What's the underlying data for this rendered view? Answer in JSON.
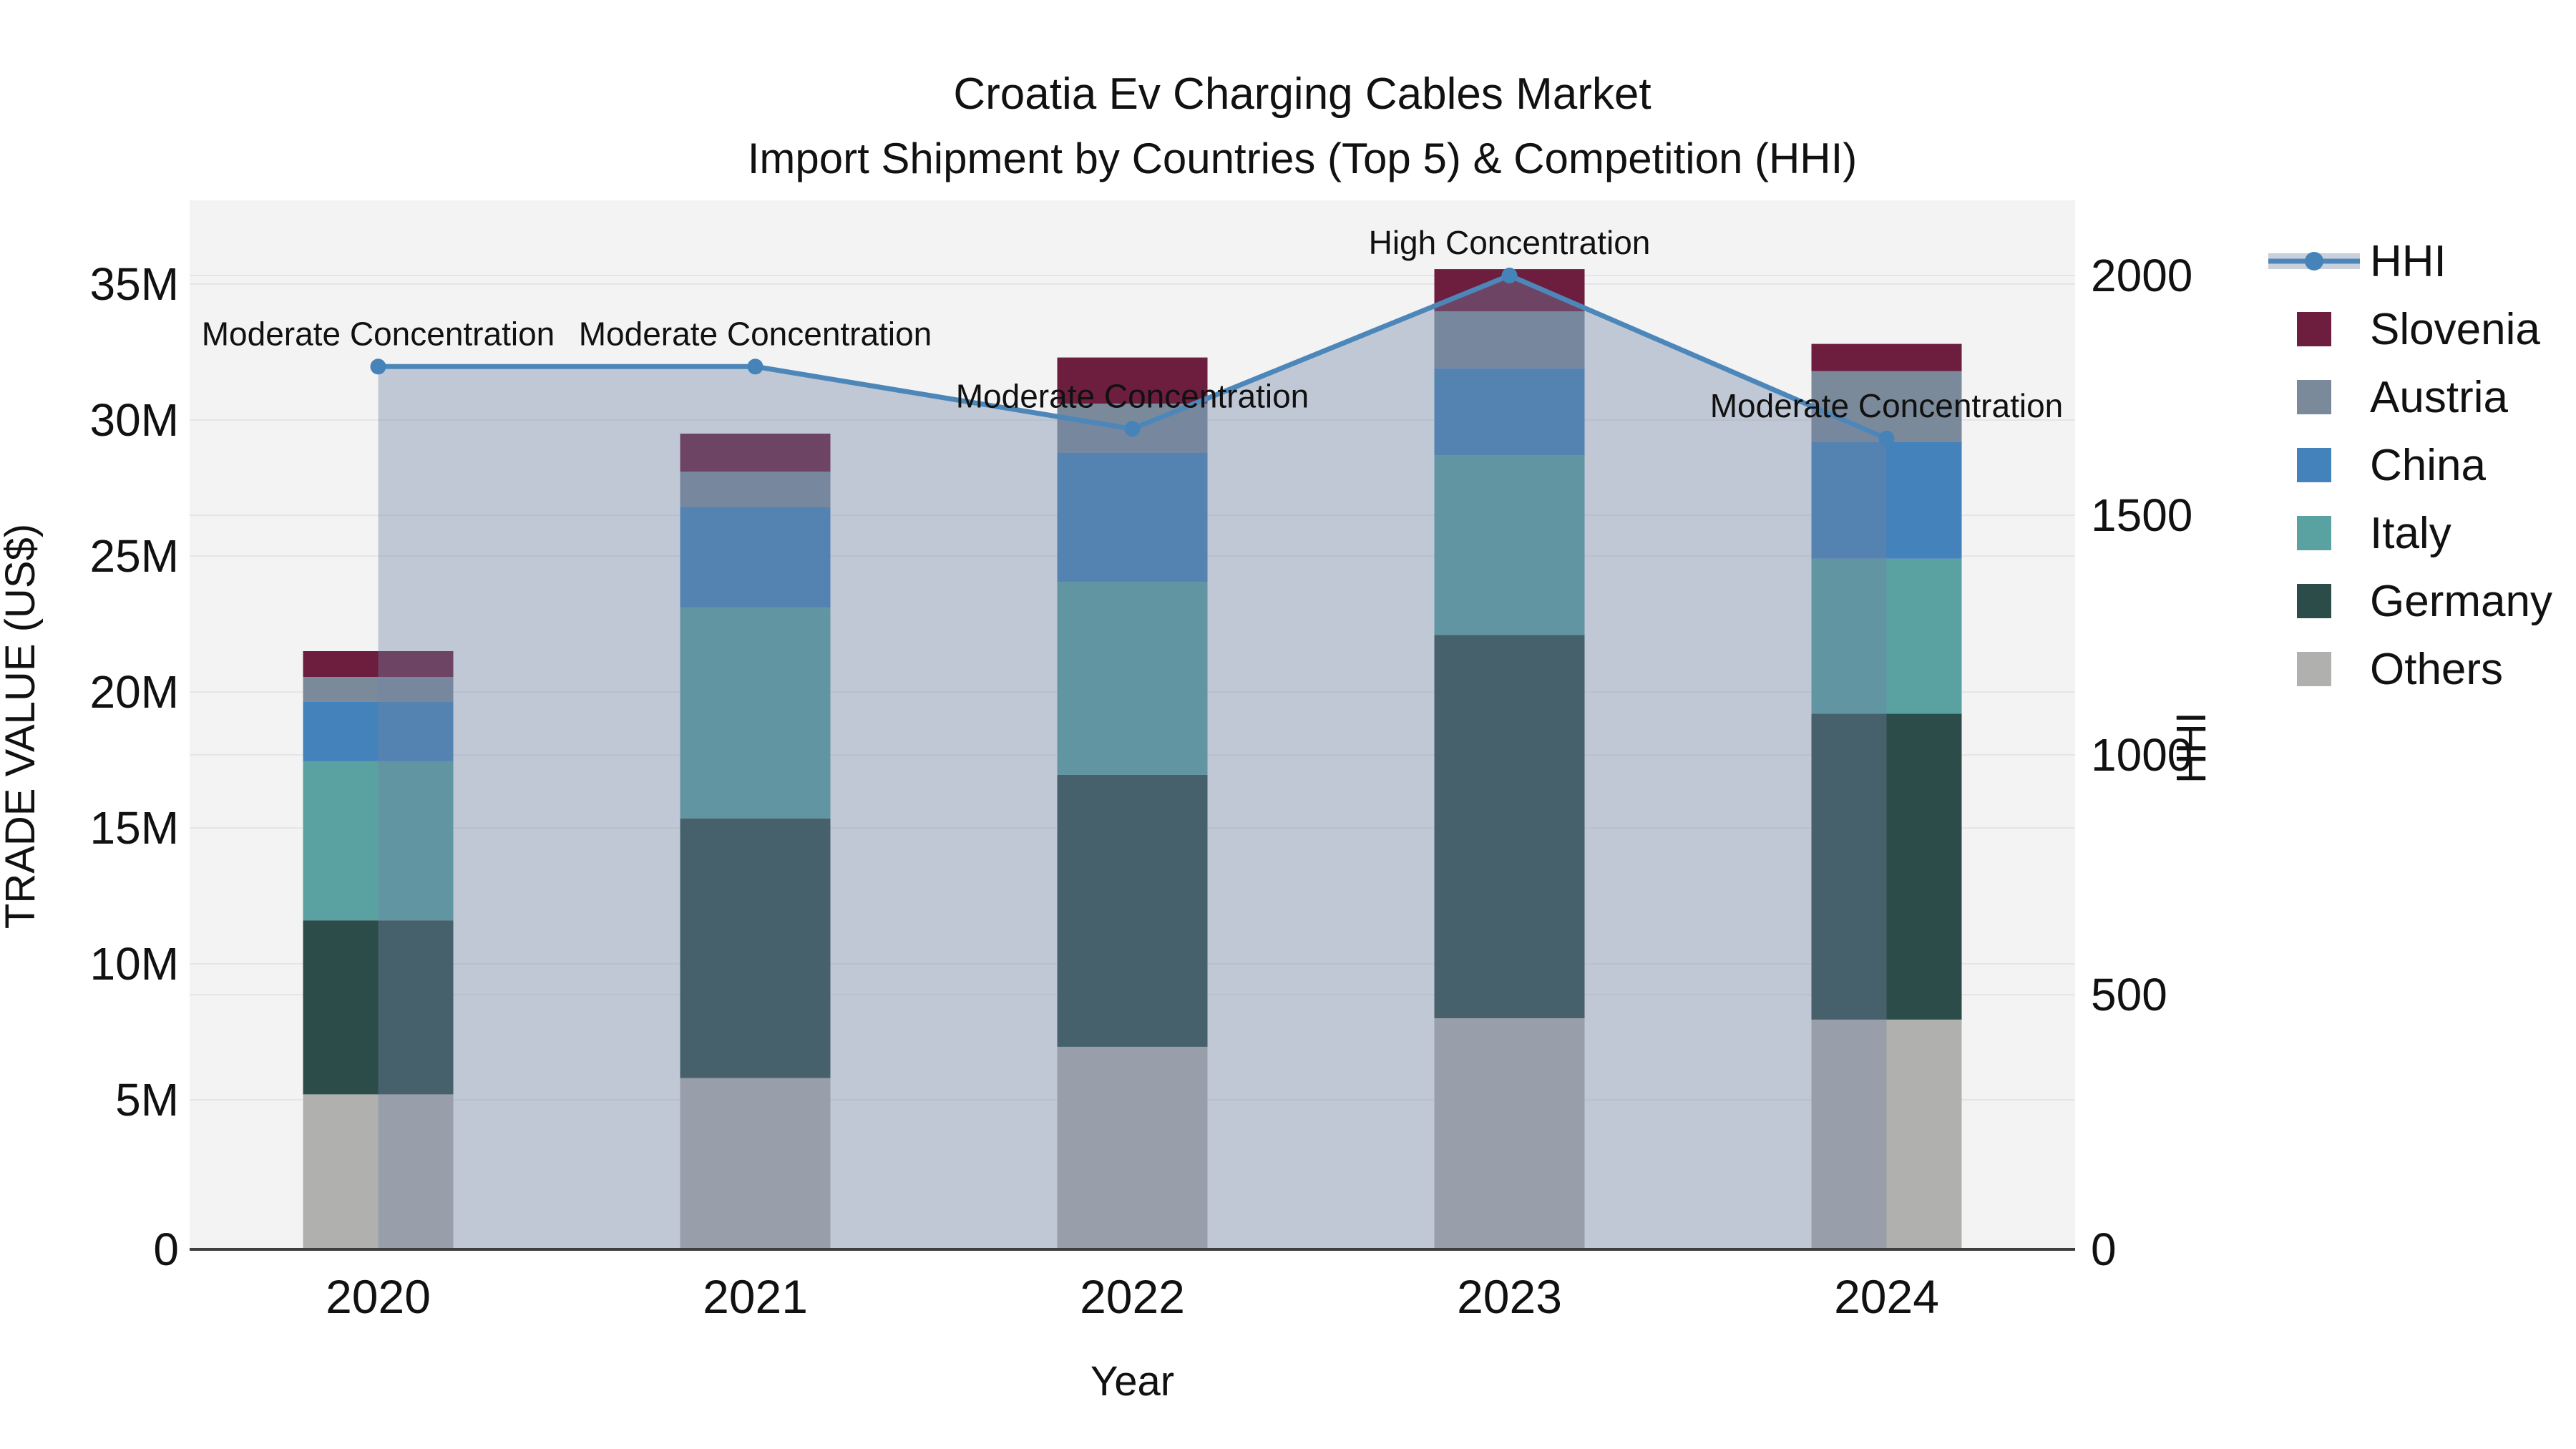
{
  "chart_data": {
    "type": "bar",
    "title": "Croatia Ev Charging Cables Market",
    "subtitle": "Import Shipment by Countries (Top 5) & Competition (HHI)",
    "xlabel": "Year",
    "ylabel_left": "TRADE VALUE (US$)",
    "ylabel_right": "HHI",
    "categories": [
      "2020",
      "2021",
      "2022",
      "2023",
      "2024"
    ],
    "value_unit": "Million US$",
    "series": [
      {
        "name": "Others",
        "color": "#b0b1ae",
        "values": [
          5.2,
          5.8,
          6.95,
          8.0,
          7.95
        ]
      },
      {
        "name": "Germany",
        "color": "#2c4c4a",
        "values": [
          6.4,
          9.55,
          10.0,
          14.1,
          11.25
        ]
      },
      {
        "name": "Italy",
        "color": "#5aa1a2",
        "values": [
          5.85,
          7.75,
          7.1,
          6.6,
          5.7
        ]
      },
      {
        "name": "China",
        "color": "#4382ba",
        "values": [
          2.2,
          3.7,
          4.75,
          3.2,
          4.3
        ]
      },
      {
        "name": "Austria",
        "color": "#7b8a9b",
        "values": [
          0.9,
          1.3,
          1.8,
          2.1,
          2.6
        ]
      },
      {
        "name": "Slovenia",
        "color": "#6d1d3e",
        "values": [
          0.95,
          1.4,
          1.7,
          1.55,
          1.0
        ]
      }
    ],
    "line_series": {
      "name": "HHI",
      "color": "#4d87ba",
      "marker_color": "#4583b8",
      "area_fill": "rgba(112,132,164,0.38)",
      "values": [
        1810,
        1810,
        1680,
        2000,
        1660
      ]
    },
    "annotations": [
      {
        "year": "2020",
        "text": "Moderate Concentration"
      },
      {
        "year": "2021",
        "text": "Moderate Concentration"
      },
      {
        "year": "2022",
        "text": "Moderate Concentration"
      },
      {
        "year": "2023",
        "text": "High Concentration"
      },
      {
        "year": "2024",
        "text": "Moderate Concentration"
      }
    ],
    "y_left": {
      "ticks": [
        "0",
        "5M",
        "10M",
        "15M",
        "20M",
        "25M",
        "30M",
        "35M"
      ],
      "tick_step_m": 5,
      "range": [
        0,
        38
      ]
    },
    "y_right": {
      "ticks": [
        "0",
        "500",
        "1000",
        "1500",
        "2000"
      ],
      "tick_step": 500,
      "range": [
        0,
        2030
      ]
    },
    "legend": [
      {
        "label": "HHI",
        "type": "line",
        "color": "#4d87ba"
      },
      {
        "label": "Slovenia",
        "type": "swatch",
        "color": "#6d1d3e"
      },
      {
        "label": "Austria",
        "type": "swatch",
        "color": "#7b8a9b"
      },
      {
        "label": "China",
        "type": "swatch",
        "color": "#4382ba"
      },
      {
        "label": "Italy",
        "type": "swatch",
        "color": "#5aa1a2"
      },
      {
        "label": "Germany",
        "type": "swatch",
        "color": "#2c4c4a"
      },
      {
        "label": "Others",
        "type": "swatch",
        "color": "#b0b1ae"
      }
    ]
  }
}
